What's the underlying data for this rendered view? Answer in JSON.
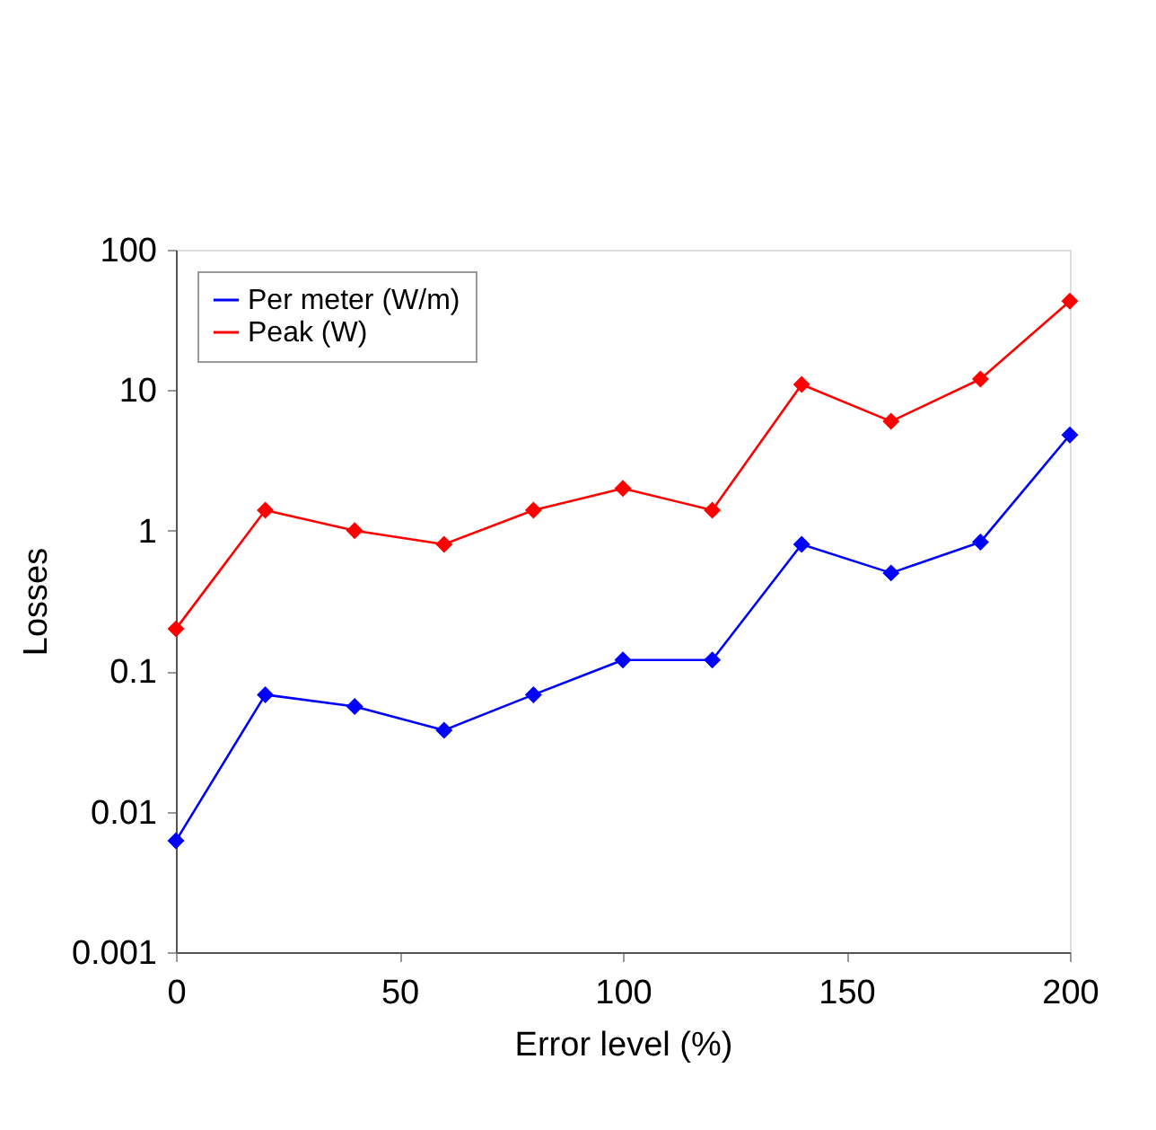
{
  "chart_data": {
    "type": "line",
    "xlabel": "Error level (%)",
    "ylabel": "Losses",
    "x": [
      0,
      20,
      40,
      60,
      80,
      100,
      120,
      140,
      160,
      180,
      200
    ],
    "series": [
      {
        "name": "Per meter (W/m)",
        "color": "#0000ff",
        "values": [
          0.0062,
          0.068,
          0.056,
          0.038,
          0.068,
          0.12,
          0.12,
          0.8,
          0.5,
          0.83,
          4.8
        ]
      },
      {
        "name": "Peak (W)",
        "color": "#ff0000",
        "values": [
          0.2,
          1.4,
          1.0,
          0.8,
          1.4,
          2.0,
          1.4,
          11,
          6,
          12,
          43
        ]
      }
    ],
    "xlim": [
      0,
      200
    ],
    "xticks": [
      0,
      50,
      100,
      150,
      200
    ],
    "ylim": [
      0.001,
      100
    ],
    "yticks": [
      0.001,
      0.01,
      0.1,
      1,
      10,
      100
    ],
    "log": "y",
    "grid": false,
    "legend": "top left",
    "marker": "diamond",
    "line_style": "solid"
  }
}
